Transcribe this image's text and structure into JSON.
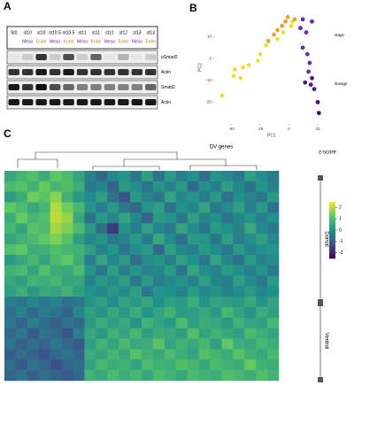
{
  "panels": {
    "a": "A",
    "b": "B",
    "c": "C"
  },
  "blot": {
    "lanes": [
      {
        "stage": "St0",
        "lineage": null
      },
      {
        "stage": "st10",
        "lineage": "Meso"
      },
      {
        "stage": "st10",
        "lineage": "Endo"
      },
      {
        "stage": "st10.5",
        "lineage": "Meso"
      },
      {
        "stage": "st10.5",
        "lineage": "Endo"
      },
      {
        "stage": "st11",
        "lineage": "Meso"
      },
      {
        "stage": "st11",
        "lineage": "Endo"
      },
      {
        "stage": "st12",
        "lineage": "Meso"
      },
      {
        "stage": "st12",
        "lineage": "Endo"
      },
      {
        "stage": "st13",
        "lineage": "Meso"
      },
      {
        "stage": "st13",
        "lineage": "Endo"
      }
    ],
    "lineage_colors": {
      "Meso": "#6a2a9a",
      "Endo": "#b08a10"
    },
    "bands": [
      {
        "name": "pSmad2",
        "intensity": [
          0.1,
          0.2,
          0.8,
          0.2,
          0.7,
          0.2,
          0.6,
          0.1,
          0.3,
          0.1,
          0.2
        ]
      },
      {
        "name": "Actin",
        "intensity": [
          0.8,
          0.8,
          0.9,
          0.8,
          0.9,
          0.8,
          0.8,
          0.8,
          0.8,
          0.8,
          0.8
        ]
      },
      {
        "name": "Smad2",
        "intensity": [
          0.9,
          0.8,
          0.95,
          0.7,
          0.6,
          0.5,
          0.5,
          0.5,
          0.5,
          0.5,
          0.6
        ]
      },
      {
        "name": "Actin",
        "intensity": [
          0.9,
          0.9,
          0.9,
          0.9,
          0.9,
          0.9,
          0.9,
          0.9,
          0.9,
          0.9,
          0.9
        ]
      }
    ]
  },
  "pca": {
    "xlabel": "PC1",
    "ylabel": "PC2",
    "xlim": [
      -65,
      35
    ],
    "ylim": [
      -30,
      22
    ],
    "xticks": [
      -50,
      -25,
      0,
      25
    ],
    "yticks": [
      -20,
      -10,
      0,
      10
    ],
    "legend": {
      "stage": "stage",
      "lineage": "lineage"
    },
    "points": [
      {
        "x": -58,
        "y": -17,
        "color": "#e8e03a"
      },
      {
        "x": -48,
        "y": -8,
        "color": "#e8e03a"
      },
      {
        "x": -47,
        "y": -5,
        "color": "#e8e03a"
      },
      {
        "x": -42,
        "y": -9,
        "color": "#e8e03a"
      },
      {
        "x": -40,
        "y": -4,
        "color": "#e8e03a"
      },
      {
        "x": -35,
        "y": -3,
        "color": "#e8e03a"
      },
      {
        "x": -27,
        "y": -1,
        "color": "#e8e03a"
      },
      {
        "x": -25,
        "y": 2,
        "color": "#e8e03a"
      },
      {
        "x": -20,
        "y": 6,
        "color": "#e8e03a"
      },
      {
        "x": -10,
        "y": 9,
        "color": "#e8e03a"
      },
      {
        "x": -5,
        "y": 12,
        "color": "#e8e03a"
      },
      {
        "x": 2,
        "y": 15,
        "color": "#e8e03a"
      },
      {
        "x": 3,
        "y": 17,
        "color": "#e8e03a"
      },
      {
        "x": -18,
        "y": 8,
        "color": "#f0a030"
      },
      {
        "x": -13,
        "y": 11,
        "color": "#f0a030"
      },
      {
        "x": -10,
        "y": 13,
        "color": "#f0a030"
      },
      {
        "x": -6,
        "y": 15,
        "color": "#f0a030"
      },
      {
        "x": -3,
        "y": 17,
        "color": "#f0a030"
      },
      {
        "x": -1,
        "y": 19,
        "color": "#f0a030"
      },
      {
        "x": 5,
        "y": 18,
        "color": "#f0a030"
      },
      {
        "x": 10,
        "y": 14,
        "color": "#6a2a9a"
      },
      {
        "x": 15,
        "y": 12,
        "color": "#6a2a9a"
      },
      {
        "x": 12,
        "y": 5,
        "color": "#6a2a9a"
      },
      {
        "x": 16,
        "y": 2,
        "color": "#6a2a9a"
      },
      {
        "x": 18,
        "y": -2,
        "color": "#6a2a9a"
      },
      {
        "x": 17,
        "y": -6,
        "color": "#6a2a9a"
      },
      {
        "x": 20,
        "y": -9,
        "color": "#4a1a80"
      },
      {
        "x": 19,
        "y": -12,
        "color": "#4a1a80"
      },
      {
        "x": 22,
        "y": -14,
        "color": "#4a1a80"
      },
      {
        "x": 25,
        "y": -20,
        "color": "#3b0f70"
      },
      {
        "x": 26,
        "y": -25,
        "color": "#3b0f70"
      },
      {
        "x": 14,
        "y": -11,
        "color": "#4a1a80"
      },
      {
        "x": 12,
        "y": 18,
        "color": "#6a2a9a"
      },
      {
        "x": 20,
        "y": 17,
        "color": "#6a2a9a"
      }
    ]
  },
  "heatmap": {
    "title": "DV genes",
    "scale_title": "z-score",
    "scale_ticks": [
      2,
      1,
      0,
      -1,
      -2
    ],
    "groups": [
      "Dorsal",
      "Ventral"
    ],
    "zlim": [
      -2.5,
      2.5
    ],
    "matrix": [
      [
        0.5,
        0.8,
        1.0,
        0.6,
        1.2,
        0.9,
        0.4,
        -0.3,
        -0.8,
        -0.2,
        0.1,
        -0.5,
        0.3,
        -0.6,
        0.2,
        -0.4,
        0,
        -0.7,
        0.1,
        -0.2,
        -0.5,
        0.3,
        -0.1,
        -0.4
      ],
      [
        0.9,
        1.1,
        0.7,
        1.3,
        0.8,
        1.0,
        0.6,
        -0.5,
        -0.2,
        -0.9,
        0.2,
        -0.1,
        -0.6,
        0.1,
        -0.3,
        0.2,
        -0.8,
        0,
        -0.4,
        0.3,
        -0.2,
        -0.6,
        0.1,
        -0.3
      ],
      [
        0.3,
        0.6,
        1.4,
        1.1,
        1.6,
        0.7,
        0.2,
        -0.1,
        0.3,
        -0.6,
        -1.2,
        0.2,
        -0.3,
        -0.5,
        0.4,
        -0.2,
        0.1,
        -0.4,
        0.2,
        -0.7,
        0,
        -0.3,
        -0.5,
        0.2
      ],
      [
        1.2,
        0.9,
        0.5,
        0.8,
        1.9,
        1.4,
        0.8,
        0.1,
        -0.4,
        0.2,
        -0.5,
        -0.8,
        0.1,
        0.3,
        -0.6,
        0,
        -0.2,
        0.4,
        -0.5,
        -0.1,
        0.3,
        -0.4,
        0.2,
        -0.6
      ],
      [
        0.6,
        1.3,
        0.8,
        1.0,
        2.0,
        1.7,
        0.5,
        -0.6,
        0.2,
        -0.3,
        0.4,
        -0.2,
        -0.9,
        0.2,
        0.1,
        -0.5,
        0.3,
        -0.3,
        0,
        -0.6,
        -0.2,
        0.1,
        -0.4,
        0
      ],
      [
        0.8,
        0.4,
        1.1,
        0.9,
        1.8,
        1.5,
        0.9,
        0.2,
        -0.7,
        -1.6,
        0.1,
        -0.4,
        0.3,
        -0.2,
        -0.5,
        0.4,
        -0.1,
        -0.6,
        0.2,
        0,
        -0.3,
        0.5,
        -0.2,
        -0.5
      ],
      [
        0.4,
        0.7,
        0.9,
        1.2,
        1.5,
        1.1,
        0.3,
        -0.2,
        0.1,
        -0.5,
        -0.3,
        0.2,
        -0.4,
        0.5,
        -0.1,
        -0.7,
        0.2,
        0.1,
        -0.5,
        0.3,
        -0.4,
        -0.1,
        0.3,
        -0.2
      ],
      [
        1.0,
        1.2,
        0.6,
        0.7,
        1.0,
        0.8,
        0.7,
        0.3,
        -0.3,
        0.1,
        -0.6,
        -0.1,
        0.2,
        -0.8,
        0.3,
        -0.2,
        -0.4,
        0.2,
        -0.1,
        -0.5,
        0.2,
        -0.3,
        0,
        0.1
      ],
      [
        0.2,
        0.5,
        0.8,
        0.4,
        0.9,
        1.2,
        0.6,
        -0.4,
        0.4,
        -0.2,
        0.2,
        -0.7,
        -0.1,
        0.1,
        -0.4,
        0.3,
        0,
        -0.5,
        0.4,
        -0.2,
        -0.6,
        0.2,
        -0.3,
        -0.1
      ],
      [
        0.7,
        0.9,
        0.4,
        1.0,
        0.6,
        0.5,
        0.9,
        0.1,
        -0.5,
        0.3,
        -0.4,
        0.1,
        -0.3,
        -0.2,
        0.2,
        -0.6,
        0.4,
        -0.1,
        -0.3,
        0.2,
        0,
        -0.4,
        0.1,
        -0.5
      ],
      [
        0.5,
        0.3,
        0.7,
        0.6,
        0.8,
        0.4,
        0.5,
        -0.3,
        0.2,
        -0.1,
        0.3,
        -0.5,
        0.2,
        -0.4,
        -0.2,
        0.1,
        -0.3,
        0.3,
        -0.2,
        -0.4,
        0.3,
        -0.1,
        -0.5,
        0.2
      ],
      [
        0.3,
        0.6,
        0.2,
        0.5,
        0.4,
        0.7,
        0.3,
        0,
        -0.2,
        0.2,
        -0.1,
        0.3,
        -0.5,
        0.1,
        0,
        -0.3,
        0.2,
        -0.2,
        0.1,
        -0.3,
        -0.1,
        0.2,
        -0.2,
        0
      ],
      [
        -0.4,
        -0.6,
        -0.2,
        -0.5,
        -0.3,
        -0.7,
        -0.5,
        0.1,
        0.3,
        -0.1,
        0.4,
        0.2,
        0.5,
        0,
        0.3,
        0.2,
        0.6,
        0.1,
        0.4,
        0.3,
        0.2,
        0.5,
        0.1,
        0.4
      ],
      [
        -0.7,
        -0.3,
        -0.8,
        -0.4,
        -0.6,
        -0.9,
        -0.2,
        0.3,
        0.1,
        0.5,
        0.2,
        0.6,
        0.1,
        0.4,
        0.7,
        0.2,
        0.3,
        0.5,
        0.2,
        0.8,
        0.4,
        0.1,
        0.6,
        0.3
      ],
      [
        -0.5,
        -0.9,
        -0.4,
        -0.7,
        -1.0,
        -0.6,
        -0.8,
        0.2,
        0.6,
        0.3,
        0.5,
        0.1,
        0.7,
        0.4,
        0.2,
        0.9,
        0.3,
        0.6,
        0.5,
        0.2,
        0.7,
        0.4,
        0.3,
        0.8
      ],
      [
        -0.8,
        -0.5,
        -1.1,
        -0.6,
        -0.7,
        -1.2,
        -0.4,
        0.5,
        0.2,
        0.7,
        0.4,
        0.8,
        0.3,
        0.6,
        0.5,
        0.3,
        1.0,
        0.4,
        0.7,
        0.5,
        0.3,
        0.9,
        0.6,
        0.4
      ],
      [
        -0.6,
        -1.0,
        -0.7,
        -0.9,
        -0.5,
        -0.8,
        -1.1,
        0.3,
        0.7,
        0.4,
        0.9,
        0.5,
        0.6,
        1.1,
        0.4,
        0.7,
        0.5,
        0.8,
        0.3,
        1.2,
        0.6,
        0.5,
        0.8,
        0.6
      ],
      [
        -1.0,
        -0.7,
        -0.9,
        -1.2,
        -0.8,
        -0.6,
        -0.9,
        0.6,
        0.4,
        0.8,
        0.5,
        1.0,
        0.7,
        0.5,
        0.9,
        0.6,
        0.4,
        1.0,
        0.8,
        0.6,
        1.1,
        0.7,
        0.5,
        0.9
      ],
      [
        -0.7,
        -1.1,
        -0.6,
        -0.8,
        -1.3,
        -0.9,
        -0.7,
        0.4,
        0.8,
        0.6,
        0.7,
        0.4,
        0.9,
        0.7,
        0.6,
        1.0,
        0.8,
        0.5,
        0.9,
        0.7,
        0.6,
        1.3,
        0.7,
        0.6
      ],
      [
        -0.9,
        -0.6,
        -1.0,
        -0.7,
        -0.9,
        -1.1,
        -0.8,
        0.7,
        0.5,
        0.9,
        0.6,
        0.8,
        0.5,
        0.9,
        0.7,
        0.5,
        0.9,
        0.7,
        0.6,
        1.0,
        0.8,
        0.6,
        1.0,
        0.7
      ]
    ]
  }
}
